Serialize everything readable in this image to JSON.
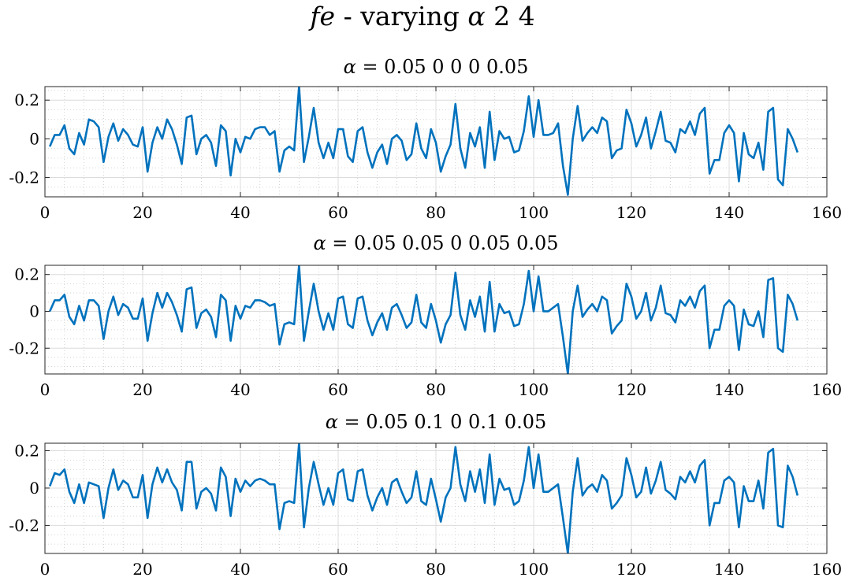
{
  "figure": {
    "title_var": "fe",
    "title_rest": " - varying ",
    "title_symbol": "α",
    "title_suffix": " 2 4"
  },
  "colors": {
    "line": "#0072BD",
    "axes": "#262626",
    "grid_major": "#dcdcdc",
    "grid_minor": "#c8c8c8",
    "background": "#ffffff"
  },
  "chart_data": [
    {
      "type": "line",
      "title_symbol": "α",
      "title_values": " = 0.05 0 0 0 0.05",
      "xlim": [
        0,
        160
      ],
      "ylim": [
        -0.3,
        0.27
      ],
      "xticks": [
        0,
        20,
        40,
        60,
        80,
        100,
        120,
        140,
        160
      ],
      "xtick_labels": [
        "0",
        "20",
        "40",
        "60",
        "80",
        "100",
        "120",
        "140",
        "160"
      ],
      "yticks": [
        -0.2,
        0,
        0.2
      ],
      "ytick_labels": [
        "-0.2",
        "0",
        "0.2"
      ],
      "grid": true,
      "minor_grid": true,
      "x_start": 1,
      "values": [
        -0.04,
        0.02,
        0.02,
        0.07,
        -0.05,
        -0.08,
        0.03,
        -0.03,
        0.1,
        0.09,
        0.06,
        -0.12,
        0.01,
        0.08,
        -0.01,
        0.05,
        0.02,
        -0.03,
        -0.04,
        0.06,
        -0.17,
        -0.02,
        0.06,
        0.0,
        0.1,
        0.05,
        -0.03,
        -0.13,
        0.11,
        0.12,
        -0.08,
        0.0,
        0.02,
        -0.02,
        -0.14,
        0.07,
        0.04,
        -0.19,
        0.0,
        -0.07,
        0.01,
        0.0,
        0.05,
        0.06,
        0.06,
        0.02,
        0.04,
        -0.17,
        -0.06,
        -0.04,
        -0.06,
        0.27,
        -0.12,
        0.01,
        0.16,
        -0.02,
        -0.1,
        -0.02,
        -0.1,
        0.05,
        0.05,
        -0.09,
        -0.12,
        0.04,
        0.06,
        -0.07,
        -0.15,
        -0.07,
        -0.03,
        -0.13,
        0.0,
        0.02,
        -0.01,
        -0.11,
        -0.08,
        0.08,
        -0.05,
        -0.1,
        0.05,
        -0.02,
        -0.17,
        -0.09,
        -0.03,
        0.18,
        -0.05,
        -0.15,
        0.03,
        -0.04,
        0.06,
        -0.15,
        0.14,
        -0.11,
        0.04,
        0.0,
        0.01,
        -0.07,
        -0.06,
        0.04,
        0.22,
        0.01,
        0.2,
        0.02,
        0.02,
        0.03,
        0.08,
        -0.14,
        -0.29,
        0.0,
        0.17,
        -0.01,
        0.03,
        0.06,
        0.03,
        0.11,
        0.09,
        -0.1,
        -0.06,
        -0.05,
        0.15,
        0.08,
        -0.04,
        0.02,
        0.11,
        -0.05,
        0.04,
        0.14,
        -0.01,
        -0.02,
        -0.07,
        0.05,
        0.03,
        0.09,
        0.02,
        0.13,
        0.16,
        -0.18,
        -0.11,
        -0.11,
        0.03,
        0.07,
        0.03,
        -0.22,
        0.03,
        -0.08,
        -0.1,
        -0.02,
        -0.16,
        0.14,
        0.16,
        -0.21,
        -0.24,
        0.05,
        0.0,
        -0.07
      ]
    },
    {
      "type": "line",
      "title_symbol": "α",
      "title_values": " = 0.05 0.05 0 0.05 0.05",
      "xlim": [
        0,
        160
      ],
      "ylim": [
        -0.34,
        0.25
      ],
      "xticks": [
        0,
        20,
        40,
        60,
        80,
        100,
        120,
        140,
        160
      ],
      "xtick_labels": [
        "0",
        "20",
        "40",
        "60",
        "80",
        "100",
        "120",
        "140",
        "160"
      ],
      "yticks": [
        -0.2,
        0,
        0.2
      ],
      "ytick_labels": [
        "-0.2",
        "0",
        "0.2"
      ],
      "grid": true,
      "minor_grid": true,
      "x_start": 1,
      "values": [
        0.0,
        0.06,
        0.06,
        0.09,
        -0.03,
        -0.07,
        0.03,
        -0.05,
        0.06,
        0.06,
        0.03,
        -0.15,
        0.0,
        0.08,
        -0.02,
        0.04,
        0.02,
        -0.04,
        -0.04,
        0.07,
        -0.16,
        -0.01,
        0.1,
        0.02,
        0.1,
        0.05,
        -0.02,
        -0.11,
        0.12,
        0.13,
        -0.09,
        -0.01,
        0.01,
        -0.03,
        -0.14,
        0.09,
        0.06,
        -0.16,
        0.03,
        -0.04,
        0.03,
        0.02,
        0.06,
        0.06,
        0.05,
        0.03,
        0.04,
        -0.18,
        -0.07,
        -0.06,
        -0.07,
        0.25,
        -0.16,
        0.0,
        0.15,
        0.0,
        -0.1,
        -0.01,
        -0.1,
        0.07,
        0.08,
        -0.07,
        -0.09,
        0.07,
        0.08,
        -0.05,
        -0.13,
        -0.06,
        -0.01,
        -0.1,
        0.02,
        0.04,
        -0.02,
        -0.09,
        -0.06,
        0.09,
        -0.06,
        -0.09,
        0.04,
        -0.05,
        -0.17,
        -0.07,
        -0.02,
        0.21,
        -0.02,
        -0.1,
        0.06,
        -0.03,
        0.08,
        -0.11,
        0.16,
        -0.11,
        0.04,
        -0.01,
        0.0,
        -0.08,
        -0.07,
        0.04,
        0.22,
        0.0,
        0.19,
        0.0,
        0.0,
        0.02,
        0.04,
        -0.14,
        -0.34,
        0.0,
        0.14,
        -0.03,
        0.01,
        0.04,
        0.0,
        0.08,
        0.06,
        -0.12,
        -0.08,
        -0.05,
        0.15,
        0.08,
        -0.04,
        0.0,
        0.1,
        -0.05,
        0.02,
        0.14,
        -0.01,
        -0.02,
        -0.06,
        0.06,
        0.03,
        0.08,
        0.02,
        0.11,
        0.14,
        -0.2,
        -0.1,
        -0.1,
        0.03,
        0.06,
        0.03,
        -0.21,
        0.01,
        -0.07,
        -0.08,
        0.0,
        -0.14,
        0.17,
        0.18,
        -0.2,
        -0.22,
        0.09,
        0.04,
        -0.05
      ]
    },
    {
      "type": "line",
      "title_symbol": "α",
      "title_values": " = 0.05 0.1 0 0.1 0.05",
      "xlim": [
        0,
        160
      ],
      "ylim": [
        -0.35,
        0.24
      ],
      "xticks": [
        0,
        20,
        40,
        60,
        80,
        100,
        120,
        140,
        160
      ],
      "xtick_labels": [
        "0",
        "20",
        "40",
        "60",
        "80",
        "100",
        "120",
        "140",
        "160"
      ],
      "yticks": [
        -0.2,
        0,
        0.2
      ],
      "ytick_labels": [
        "-0.2",
        "0",
        "0.2"
      ],
      "grid": true,
      "minor_grid": true,
      "x_start": 1,
      "values": [
        0.01,
        0.08,
        0.07,
        0.1,
        -0.02,
        -0.08,
        0.02,
        -0.08,
        0.03,
        0.02,
        0.01,
        -0.16,
        0.0,
        0.1,
        -0.01,
        0.04,
        0.02,
        -0.05,
        -0.05,
        0.07,
        -0.16,
        0.02,
        0.11,
        0.03,
        0.1,
        0.03,
        -0.01,
        -0.12,
        0.14,
        0.14,
        -0.11,
        -0.02,
        0.0,
        -0.03,
        -0.12,
        0.11,
        0.06,
        -0.15,
        0.05,
        -0.02,
        0.04,
        0.01,
        0.04,
        0.05,
        0.04,
        0.02,
        0.02,
        -0.22,
        -0.08,
        -0.07,
        -0.08,
        0.24,
        -0.21,
        0.0,
        0.14,
        0.02,
        -0.09,
        0.0,
        -0.09,
        0.08,
        0.1,
        -0.06,
        -0.07,
        0.09,
        0.1,
        -0.04,
        -0.12,
        -0.05,
        0.0,
        -0.09,
        0.03,
        0.05,
        -0.02,
        -0.08,
        -0.05,
        0.09,
        -0.07,
        -0.09,
        0.05,
        -0.06,
        -0.18,
        -0.05,
        0.0,
        0.22,
        0.02,
        -0.07,
        0.09,
        -0.02,
        0.1,
        -0.08,
        0.18,
        -0.09,
        0.05,
        -0.01,
        0.0,
        -0.09,
        -0.07,
        0.04,
        0.22,
        0.0,
        0.18,
        -0.02,
        -0.02,
        0.0,
        0.02,
        -0.16,
        -0.35,
        -0.02,
        0.16,
        -0.04,
        0.0,
        0.02,
        -0.02,
        0.07,
        0.04,
        -0.11,
        -0.08,
        -0.04,
        0.16,
        0.07,
        -0.05,
        -0.02,
        0.11,
        -0.03,
        0.04,
        0.14,
        -0.01,
        -0.03,
        -0.06,
        0.06,
        0.03,
        0.09,
        0.03,
        0.12,
        0.15,
        -0.2,
        -0.08,
        -0.08,
        0.04,
        0.06,
        0.03,
        -0.21,
        0.01,
        -0.07,
        -0.07,
        0.04,
        -0.11,
        0.19,
        0.21,
        -0.2,
        -0.21,
        0.12,
        0.06,
        -0.04
      ]
    }
  ]
}
